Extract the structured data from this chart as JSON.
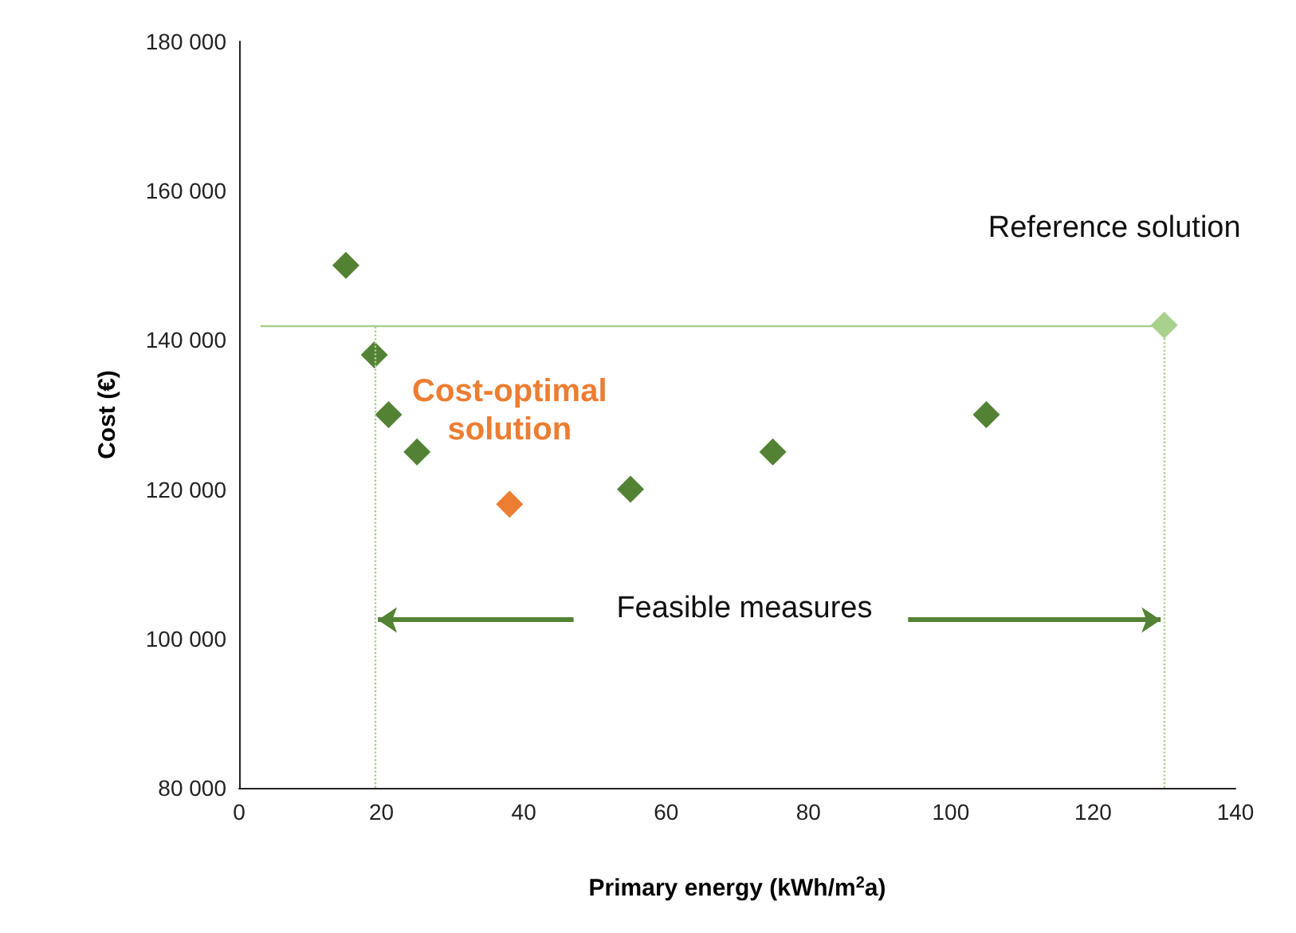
{
  "chart_data": {
    "type": "scatter",
    "xlabel": "Primary energy (kWh/m$^{2}$a)",
    "ylabel": "Cost (€)",
    "x": [
      15,
      19,
      21,
      25,
      38,
      55,
      75,
      105,
      130
    ],
    "values": [
      150000,
      138000,
      130000,
      125000,
      118000,
      120000,
      125000,
      130000,
      142000
    ],
    "colors": [
      "#548235",
      "#548235",
      "#548235",
      "#548235",
      "#ed7d31",
      "#548235",
      "#548235",
      "#548235",
      "#a9d18e"
    ],
    "marker": "diamond",
    "grid": false,
    "xlim": [
      0,
      140
    ],
    "xticks": [
      0,
      20,
      40,
      60,
      80,
      100,
      120,
      140
    ],
    "ylim": [
      80000,
      180000
    ],
    "yticks": [
      {
        "value": 80000,
        "label": "80 000"
      },
      {
        "value": 100000,
        "label": "100 000"
      },
      {
        "value": 120000,
        "label": "120 000"
      },
      {
        "value": 140000,
        "label": "140 000"
      },
      {
        "value": 160000,
        "label": "160 000"
      },
      {
        "value": 180000,
        "label": "180 000"
      }
    ],
    "ref_lines": [
      {
        "axis": "y",
        "value": 142000,
        "color": "#a9d18e",
        "line_style": "solid"
      },
      {
        "axis": "x",
        "value": 19,
        "color": "#a9d18e",
        "line_style": "dotted"
      },
      {
        "axis": "x",
        "value": 130,
        "color": "#a9d18e",
        "line_style": "dotted"
      }
    ],
    "annotations": [
      "Cost-optimal solution",
      "Reference solution",
      {
        "text": "Feasible measures",
        "x": 130,
        "y": 102500
      }
    ]
  }
}
